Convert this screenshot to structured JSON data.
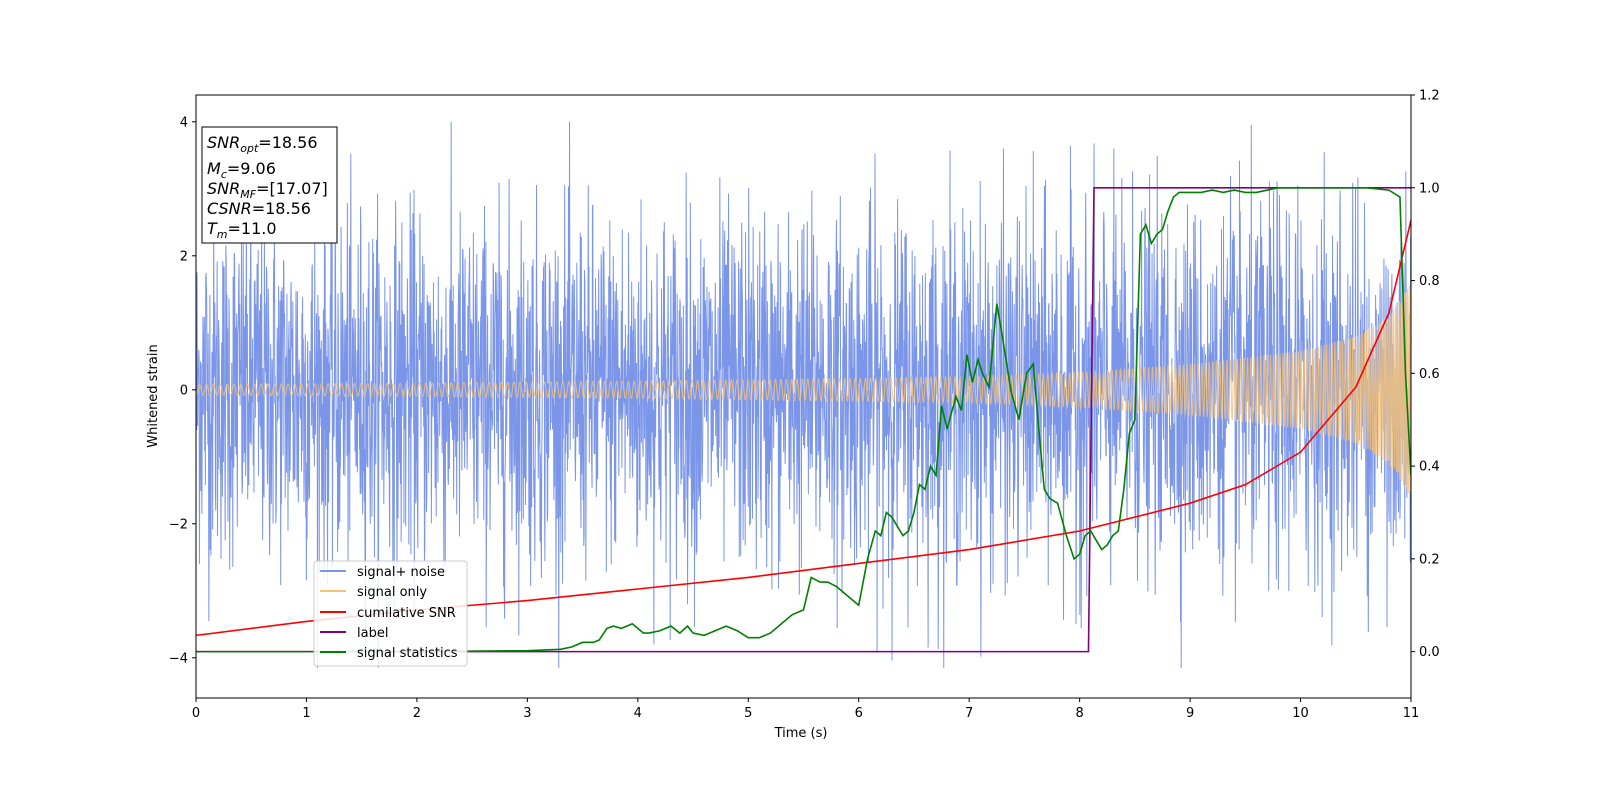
{
  "chart_data": {
    "type": "line",
    "xlabel": "Time (s)",
    "ylabel": "Whitened strain",
    "xlim": [
      0,
      11
    ],
    "ylim": [
      -4.6,
      4.4
    ],
    "y2lim": [
      -0.1,
      1.2
    ],
    "xticks": [
      "0",
      "1",
      "2",
      "3",
      "4",
      "5",
      "6",
      "7",
      "8",
      "9",
      "10",
      "11"
    ],
    "yticks": [
      "−4",
      "−2",
      "0",
      "2",
      "4"
    ],
    "y2ticks": [
      "0.0",
      "0.2",
      "0.4",
      "0.6",
      "0.8",
      "1.0",
      "1.2"
    ],
    "colors": {
      "noise": "#7b96e8",
      "signal": "#f5c27a",
      "csnr": "#ff0000",
      "label": "#800080",
      "stat": "#008000"
    },
    "info_box": {
      "snr_opt": {
        "main": "SNR",
        "sub": "opt",
        "value": "=18.56"
      },
      "mc": {
        "main": "M",
        "sub": "c",
        "value": "=9.06"
      },
      "snr_mf": {
        "main": "SNR",
        "sub": "MF",
        "value": "=[17.07]"
      },
      "csnr": {
        "main": "CSNR",
        "value": "=18.56"
      },
      "tm": {
        "main": "T",
        "sub": "m",
        "value": "=11.0"
      }
    },
    "legend": {
      "location": "lower-left",
      "items": [
        "signal+ noise",
        "signal only",
        "cumilative SNR",
        "label",
        "signal statistics"
      ]
    },
    "series": [
      {
        "name": "signal+ noise",
        "axis": "left",
        "kind": "noise",
        "description_values": {
          "typical_amplitude": 1.3,
          "max": 4.0,
          "min": -4.15
        }
      },
      {
        "name": "signal only",
        "axis": "left",
        "kind": "chirp",
        "envelope": [
          [
            0,
            0.08
          ],
          [
            2,
            0.1
          ],
          [
            4,
            0.13
          ],
          [
            6,
            0.17
          ],
          [
            7,
            0.2
          ],
          [
            8,
            0.26
          ],
          [
            9,
            0.38
          ],
          [
            10,
            0.58
          ],
          [
            10.5,
            0.8
          ],
          [
            10.8,
            1.1
          ],
          [
            11,
            1.6
          ]
        ]
      },
      {
        "name": "cumilative SNR",
        "axis": "right",
        "x": [
          0,
          1,
          2,
          3,
          4,
          5,
          6,
          7,
          8,
          9,
          9.5,
          10,
          10.5,
          10.8,
          11
        ],
        "y": [
          0.035,
          0.065,
          0.09,
          0.11,
          0.135,
          0.16,
          0.19,
          0.22,
          0.26,
          0.32,
          0.36,
          0.43,
          0.57,
          0.73,
          0.93
        ]
      },
      {
        "name": "label",
        "axis": "right",
        "x": [
          0,
          8.08,
          8.13,
          11
        ],
        "y": [
          0,
          0,
          1,
          1
        ]
      },
      {
        "name": "signal statistics",
        "axis": "right",
        "x": [
          0,
          1,
          2,
          3,
          3.3,
          3.4,
          3.5,
          3.6,
          3.65,
          3.72,
          3.78,
          3.85,
          3.9,
          3.95,
          4.0,
          4.05,
          4.1,
          4.2,
          4.3,
          4.38,
          4.45,
          4.5,
          4.6,
          4.7,
          4.8,
          4.9,
          5.0,
          5.1,
          5.2,
          5.3,
          5.4,
          5.5,
          5.57,
          5.65,
          5.72,
          5.8,
          5.9,
          6.0,
          6.08,
          6.15,
          6.2,
          6.25,
          6.3,
          6.4,
          6.45,
          6.5,
          6.55,
          6.6,
          6.65,
          6.7,
          6.75,
          6.8,
          6.88,
          6.93,
          6.98,
          7.03,
          7.08,
          7.12,
          7.18,
          7.25,
          7.3,
          7.38,
          7.45,
          7.52,
          7.58,
          7.63,
          7.68,
          7.73,
          7.8,
          7.88,
          7.95,
          8.0,
          8.05,
          8.1,
          8.15,
          8.2,
          8.25,
          8.3,
          8.35,
          8.4,
          8.45,
          8.5,
          8.55,
          8.6,
          8.65,
          8.7,
          8.75,
          8.8,
          8.85,
          8.9,
          9.0,
          9.1,
          9.2,
          9.3,
          9.4,
          9.5,
          9.6,
          9.7,
          9.8,
          10.0,
          10.2,
          10.4,
          10.6,
          10.8,
          10.9,
          10.95,
          11.0
        ],
        "y": [
          0,
          0,
          0,
          0.002,
          0.005,
          0.01,
          0.02,
          0.02,
          0.025,
          0.05,
          0.055,
          0.05,
          0.055,
          0.06,
          0.05,
          0.04,
          0.04,
          0.045,
          0.055,
          0.04,
          0.055,
          0.04,
          0.035,
          0.045,
          0.055,
          0.045,
          0.03,
          0.03,
          0.04,
          0.06,
          0.08,
          0.09,
          0.16,
          0.15,
          0.15,
          0.14,
          0.12,
          0.1,
          0.2,
          0.26,
          0.25,
          0.3,
          0.29,
          0.25,
          0.26,
          0.3,
          0.36,
          0.35,
          0.4,
          0.38,
          0.53,
          0.48,
          0.55,
          0.52,
          0.64,
          0.58,
          0.63,
          0.6,
          0.57,
          0.75,
          0.68,
          0.56,
          0.5,
          0.6,
          0.62,
          0.48,
          0.35,
          0.33,
          0.32,
          0.25,
          0.2,
          0.21,
          0.25,
          0.26,
          0.24,
          0.22,
          0.23,
          0.25,
          0.26,
          0.35,
          0.47,
          0.5,
          0.9,
          0.92,
          0.88,
          0.9,
          0.91,
          0.95,
          0.98,
          0.99,
          0.99,
          0.99,
          0.995,
          0.99,
          0.995,
          0.99,
          0.99,
          0.995,
          1.0,
          1.0,
          1.0,
          1.0,
          1.0,
          0.995,
          0.98,
          0.6,
          0.38
        ]
      }
    ]
  }
}
